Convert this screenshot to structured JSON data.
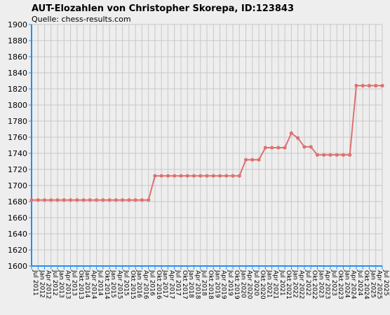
{
  "chart_data": {
    "type": "line",
    "title": "AUT-Elozahlen von Christopher Skorepa, ID:123843",
    "subtitle": "Quelle: chess-results.com",
    "xlabel": "",
    "ylabel": "",
    "ylim": [
      1600,
      1900
    ],
    "yticks": [
      1600,
      1620,
      1640,
      1660,
      1680,
      1700,
      1720,
      1740,
      1760,
      1780,
      1800,
      1820,
      1840,
      1860,
      1880,
      1900
    ],
    "grid": true,
    "legend": "none",
    "colors": {
      "line": "#e07070",
      "marker": "#e07070",
      "grid": "#c8c8c8",
      "axis": "#1e90ff",
      "background": "#eeeeee"
    },
    "x": [
      "Jul 2011",
      "Jan 2012",
      "Apr 2012",
      "Jul 2012",
      "Jan 2013",
      "Apr 2013",
      "Jul 2013",
      "Okt 2013",
      "Jan 2014",
      "Apr 2014",
      "Jul 2014",
      "Okt 2014",
      "Jan 2015",
      "Apr 2015",
      "Jul 2015",
      "Okt 2015",
      "Jan 2016",
      "Apr 2016",
      "Jul 2016",
      "Okt 2016",
      "Jan 2017",
      "Apr 2017",
      "Jul 2017",
      "Okt 2017",
      "Jan 2018",
      "Apr 2018",
      "Jul 2018",
      "Okt 2018",
      "Jan 2019",
      "Apr 2019",
      "Jul 2019",
      "Okt 2019",
      "Jan 2020",
      "Apr 2020",
      "Jul 2020",
      "Okt 2020",
      "Jan 2021",
      "Apr 2021",
      "Jul 2021",
      "Okt 2021",
      "Jan 2022",
      "Apr 2022",
      "Jul 2022",
      "Okt 2022",
      "Jan 2023",
      "Apr 2023",
      "Jul 2023",
      "Okt 2023",
      "Jan 2024",
      "Apr 2024",
      "Jul 2024",
      "Okt 2024",
      "Jan 2025",
      "Apr 2025",
      "Jul 2025"
    ],
    "series": [
      {
        "values": [
          1682,
          1682,
          1682,
          1682,
          1682,
          1682,
          1682,
          1682,
          1682,
          1682,
          1682,
          1682,
          1682,
          1682,
          1682,
          1682,
          1682,
          1682,
          1682,
          1712,
          1712,
          1712,
          1712,
          1712,
          1712,
          1712,
          1712,
          1712,
          1712,
          1712,
          1712,
          1712,
          1712,
          1732,
          1732,
          1732,
          1747,
          1747,
          1747,
          1747,
          1765,
          1759,
          1748,
          1748,
          1738,
          1738,
          1738,
          1738,
          1738,
          1738,
          1824,
          1824,
          1824,
          1824,
          1824
        ]
      }
    ]
  }
}
